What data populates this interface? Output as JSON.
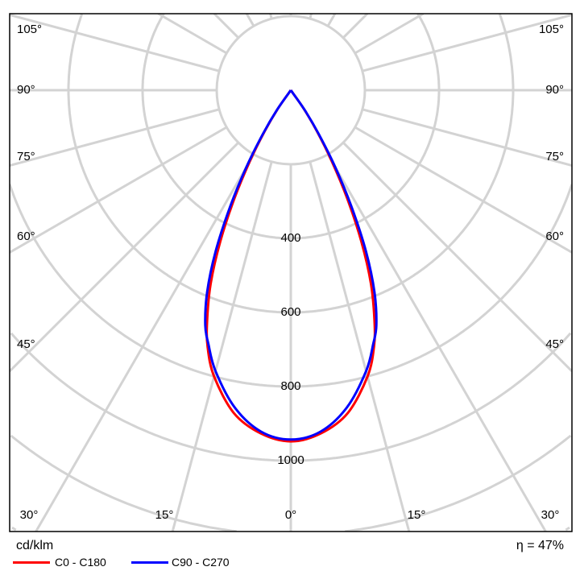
{
  "chart_data": {
    "type": "polar-line",
    "unit_label": "cd/klm",
    "efficiency_label": "η = 47%",
    "radial_ticks": [
      400,
      600,
      800,
      1000
    ],
    "radial_rings": [
      200,
      400,
      600,
      800,
      1000,
      1200,
      1400
    ],
    "angle_labels_left": [
      "105°",
      "90°",
      "75°",
      "60°",
      "45°"
    ],
    "angle_labels_right": [
      "105°",
      "90°",
      "75°",
      "60°",
      "45°"
    ],
    "angle_labels_bottom": [
      "30°",
      "15°",
      "0°",
      "15°",
      "30°"
    ],
    "grid": true,
    "legend_position": "bottom-left",
    "angles": [
      0,
      5,
      10,
      15,
      18,
      20,
      22.5,
      25,
      27.5,
      30,
      32.5,
      35,
      40
    ],
    "series": [
      {
        "name": "C0 - C180",
        "color": "#ff0000",
        "values": [
          948,
          930,
          885,
          800,
          727,
          660,
          565,
          450,
          330,
          220,
          130,
          60,
          0
        ]
      },
      {
        "name": "C90 - C270",
        "color": "#0000ff",
        "values": [
          943,
          925,
          870,
          785,
          720,
          675,
          590,
          480,
          355,
          240,
          140,
          65,
          0
        ]
      }
    ]
  }
}
